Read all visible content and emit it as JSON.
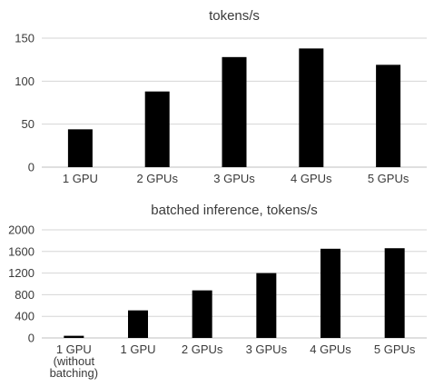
{
  "chart_data": [
    {
      "type": "bar",
      "title": "tokens/s",
      "categories": [
        [
          "1 GPU"
        ],
        [
          "2 GPUs"
        ],
        [
          "3 GPUs"
        ],
        [
          "4 GPUs"
        ],
        [
          "5 GPUs"
        ]
      ],
      "values": [
        44,
        88,
        128,
        138,
        119
      ],
      "ylim": [
        0,
        150
      ],
      "yticks": [
        0,
        50,
        100,
        150
      ],
      "grid": true,
      "legend": "none",
      "bar_color": "#000000"
    },
    {
      "type": "bar",
      "title": "batched inference, tokens/s",
      "categories": [
        [
          "1 GPU",
          "(without",
          "batching)"
        ],
        [
          "1 GPU"
        ],
        [
          "2 GPUs"
        ],
        [
          "3 GPUs"
        ],
        [
          "4 GPUs"
        ],
        [
          "5 GPUs"
        ]
      ],
      "values": [
        40,
        510,
        880,
        1200,
        1650,
        1660
      ],
      "ylim": [
        0,
        2000
      ],
      "yticks": [
        0,
        400,
        800,
        1200,
        1600,
        2000
      ],
      "grid": true,
      "legend": "none",
      "bar_color": "#000000"
    }
  ]
}
